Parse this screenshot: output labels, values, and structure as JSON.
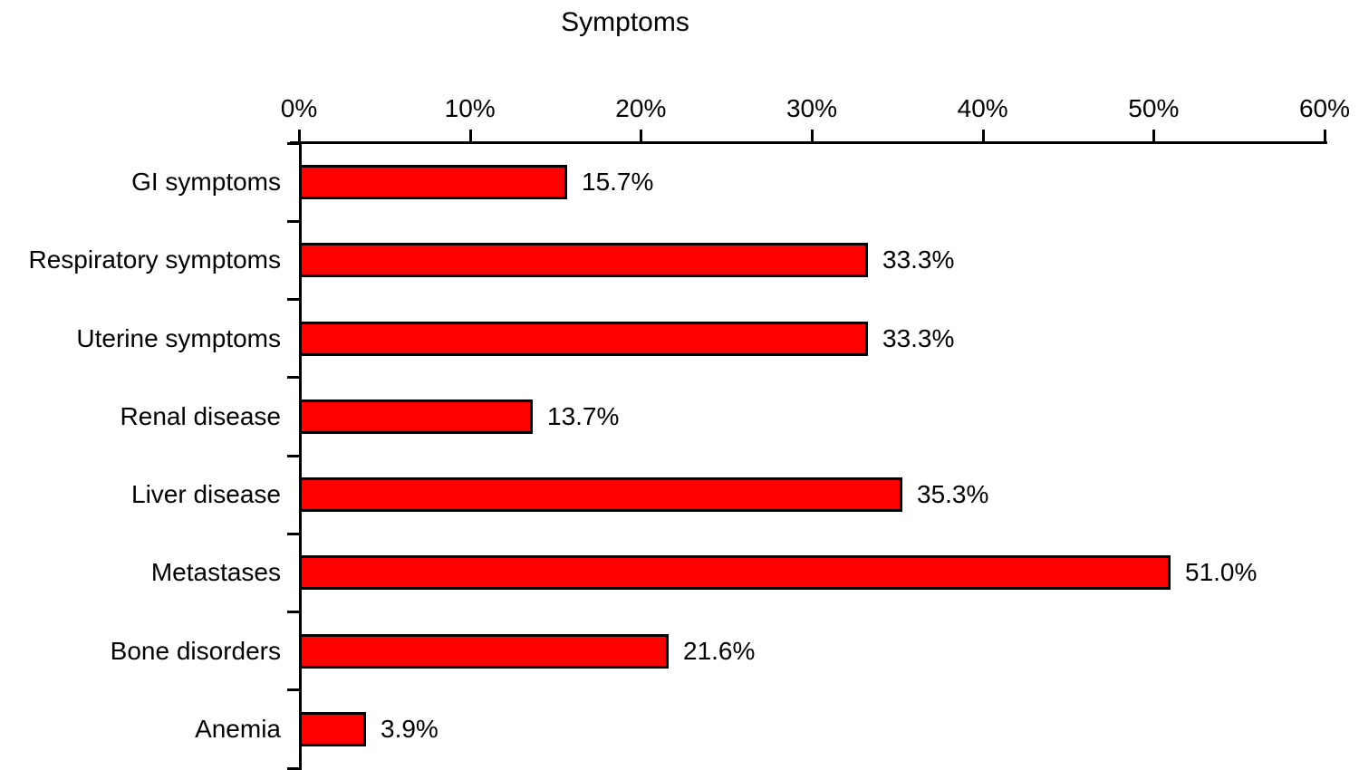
{
  "chart_data": {
    "type": "bar",
    "orientation": "horizontal",
    "title": "Symptoms",
    "categories": [
      "GI symptoms",
      "Respiratory symptoms",
      "Uterine symptoms",
      "Renal disease",
      "Liver disease",
      "Metastases",
      "Bone disorders",
      "Anemia"
    ],
    "values": [
      15.7,
      33.3,
      33.3,
      13.7,
      35.3,
      51.0,
      21.6,
      3.9
    ],
    "value_labels": [
      "15.7%",
      "33.3%",
      "33.3%",
      "13.7%",
      "35.3%",
      "51.0%",
      "21.6%",
      "3.9%"
    ],
    "xlabel": "",
    "ylabel": "",
    "xlim": [
      0,
      60
    ],
    "x_tick_values": [
      0,
      10,
      20,
      30,
      40,
      50,
      60
    ],
    "x_tick_labels": [
      "0%",
      "10%",
      "20%",
      "30%",
      "40%",
      "50%",
      "60%"
    ],
    "x_axis_position": "top",
    "grid": false,
    "legend_position": "none",
    "bar_color": "#ff0000",
    "bar_border_color": "#000000",
    "axis_color": "#000000",
    "text_color": "#000000",
    "background_color": "#ffffff"
  }
}
